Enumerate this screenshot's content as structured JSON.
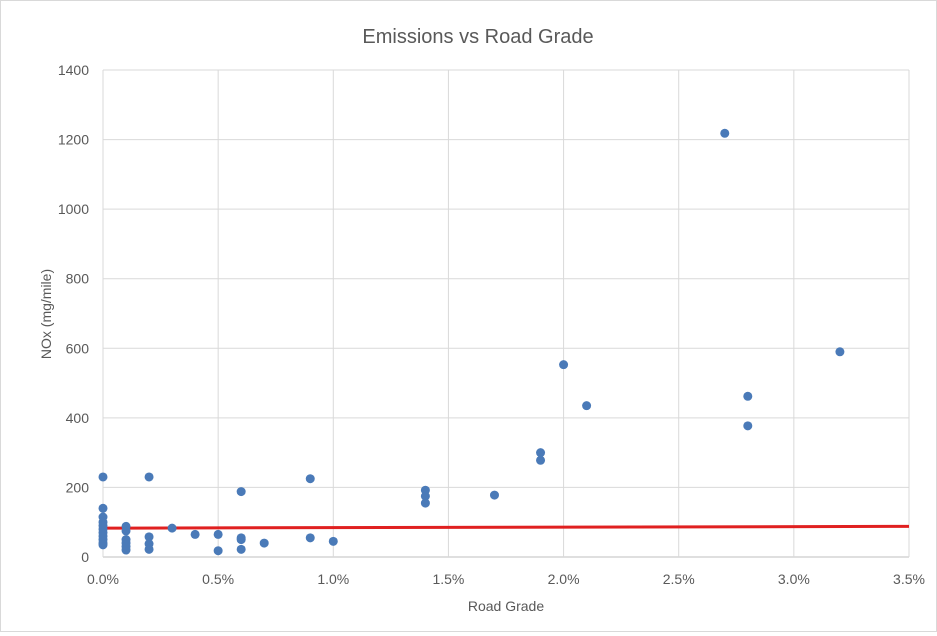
{
  "chart_data": {
    "type": "scatter",
    "title": "Emissions vs Road Grade",
    "xlabel": "Road Grade",
    "ylabel": "NOx (mg/mile)",
    "xlim": [
      0,
      0.035
    ],
    "ylim": [
      0,
      1400
    ],
    "x_ticks": [
      0,
      0.005,
      0.01,
      0.015,
      0.02,
      0.025,
      0.03,
      0.035
    ],
    "x_tick_labels": [
      "0.0%",
      "0.5%",
      "1.0%",
      "1.5%",
      "2.0%",
      "2.5%",
      "3.0%",
      "3.5%"
    ],
    "y_ticks": [
      0,
      200,
      400,
      600,
      800,
      1000,
      1200,
      1400
    ],
    "y_tick_labels": [
      "0",
      "200",
      "400",
      "600",
      "800",
      "1000",
      "1200",
      "1400"
    ],
    "grid": true,
    "legend": "none",
    "marker_color": "#4a7ab8",
    "trendline_color": "#e02020",
    "points": [
      [
        0.0,
        230
      ],
      [
        0.0,
        140
      ],
      [
        0.0,
        115
      ],
      [
        0.0,
        100
      ],
      [
        0.0,
        90
      ],
      [
        0.0,
        80
      ],
      [
        0.0,
        70
      ],
      [
        0.0,
        60
      ],
      [
        0.0,
        50
      ],
      [
        0.0,
        40
      ],
      [
        0.0,
        35
      ],
      [
        0.001,
        88
      ],
      [
        0.001,
        75
      ],
      [
        0.001,
        50
      ],
      [
        0.001,
        40
      ],
      [
        0.001,
        30
      ],
      [
        0.001,
        20
      ],
      [
        0.002,
        230
      ],
      [
        0.002,
        58
      ],
      [
        0.002,
        38
      ],
      [
        0.002,
        22
      ],
      [
        0.003,
        83
      ],
      [
        0.004,
        65
      ],
      [
        0.005,
        65
      ],
      [
        0.005,
        18
      ],
      [
        0.006,
        188
      ],
      [
        0.006,
        55
      ],
      [
        0.006,
        50
      ],
      [
        0.006,
        22
      ],
      [
        0.007,
        40
      ],
      [
        0.009,
        225
      ],
      [
        0.009,
        55
      ],
      [
        0.01,
        45
      ],
      [
        0.014,
        192
      ],
      [
        0.014,
        175
      ],
      [
        0.014,
        155
      ],
      [
        0.017,
        178
      ],
      [
        0.019,
        300
      ],
      [
        0.019,
        278
      ],
      [
        0.02,
        553
      ],
      [
        0.021,
        435
      ],
      [
        0.027,
        1218
      ],
      [
        0.028,
        462
      ],
      [
        0.028,
        377
      ],
      [
        0.032,
        590
      ]
    ],
    "trendline": {
      "x": [
        0,
        0.035
      ],
      "y": [
        83,
        88
      ]
    }
  }
}
